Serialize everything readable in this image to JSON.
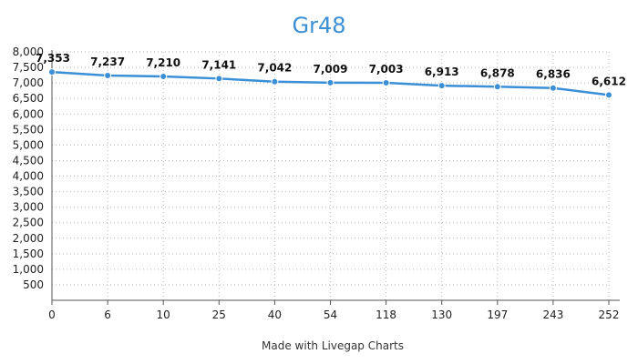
{
  "chart_data": {
    "type": "line",
    "title": "Gr48",
    "categories": [
      "0",
      "6",
      "10",
      "25",
      "40",
      "54",
      "118",
      "130",
      "197",
      "243",
      "252"
    ],
    "series": [
      {
        "values": [
          7353,
          7237,
          7210,
          7141,
          7042,
          7009,
          7003,
          6913,
          6878,
          6836,
          6612
        ]
      }
    ],
    "data_labels": [
      "7,353",
      "7,237",
      "7,210",
      "7,141",
      "7,042",
      "7,009",
      "7,003",
      "6,913",
      "6,878",
      "6,836",
      "6,612"
    ],
    "y_ticks": [
      "500",
      "1,000",
      "1,500",
      "2,000",
      "2,500",
      "3,000",
      "3,500",
      "4,000",
      "4,500",
      "5,000",
      "5,500",
      "6,000",
      "6,500",
      "7,000",
      "7,500",
      "8,000"
    ],
    "ylim": [
      0,
      8000
    ],
    "grid": true,
    "colors": {
      "title": "#3a8fd6",
      "line": "#3a8fd6",
      "grid": "#bbbbbb",
      "axis": "#555555"
    }
  },
  "footer": {
    "credit": "Made with Livegap Charts"
  }
}
